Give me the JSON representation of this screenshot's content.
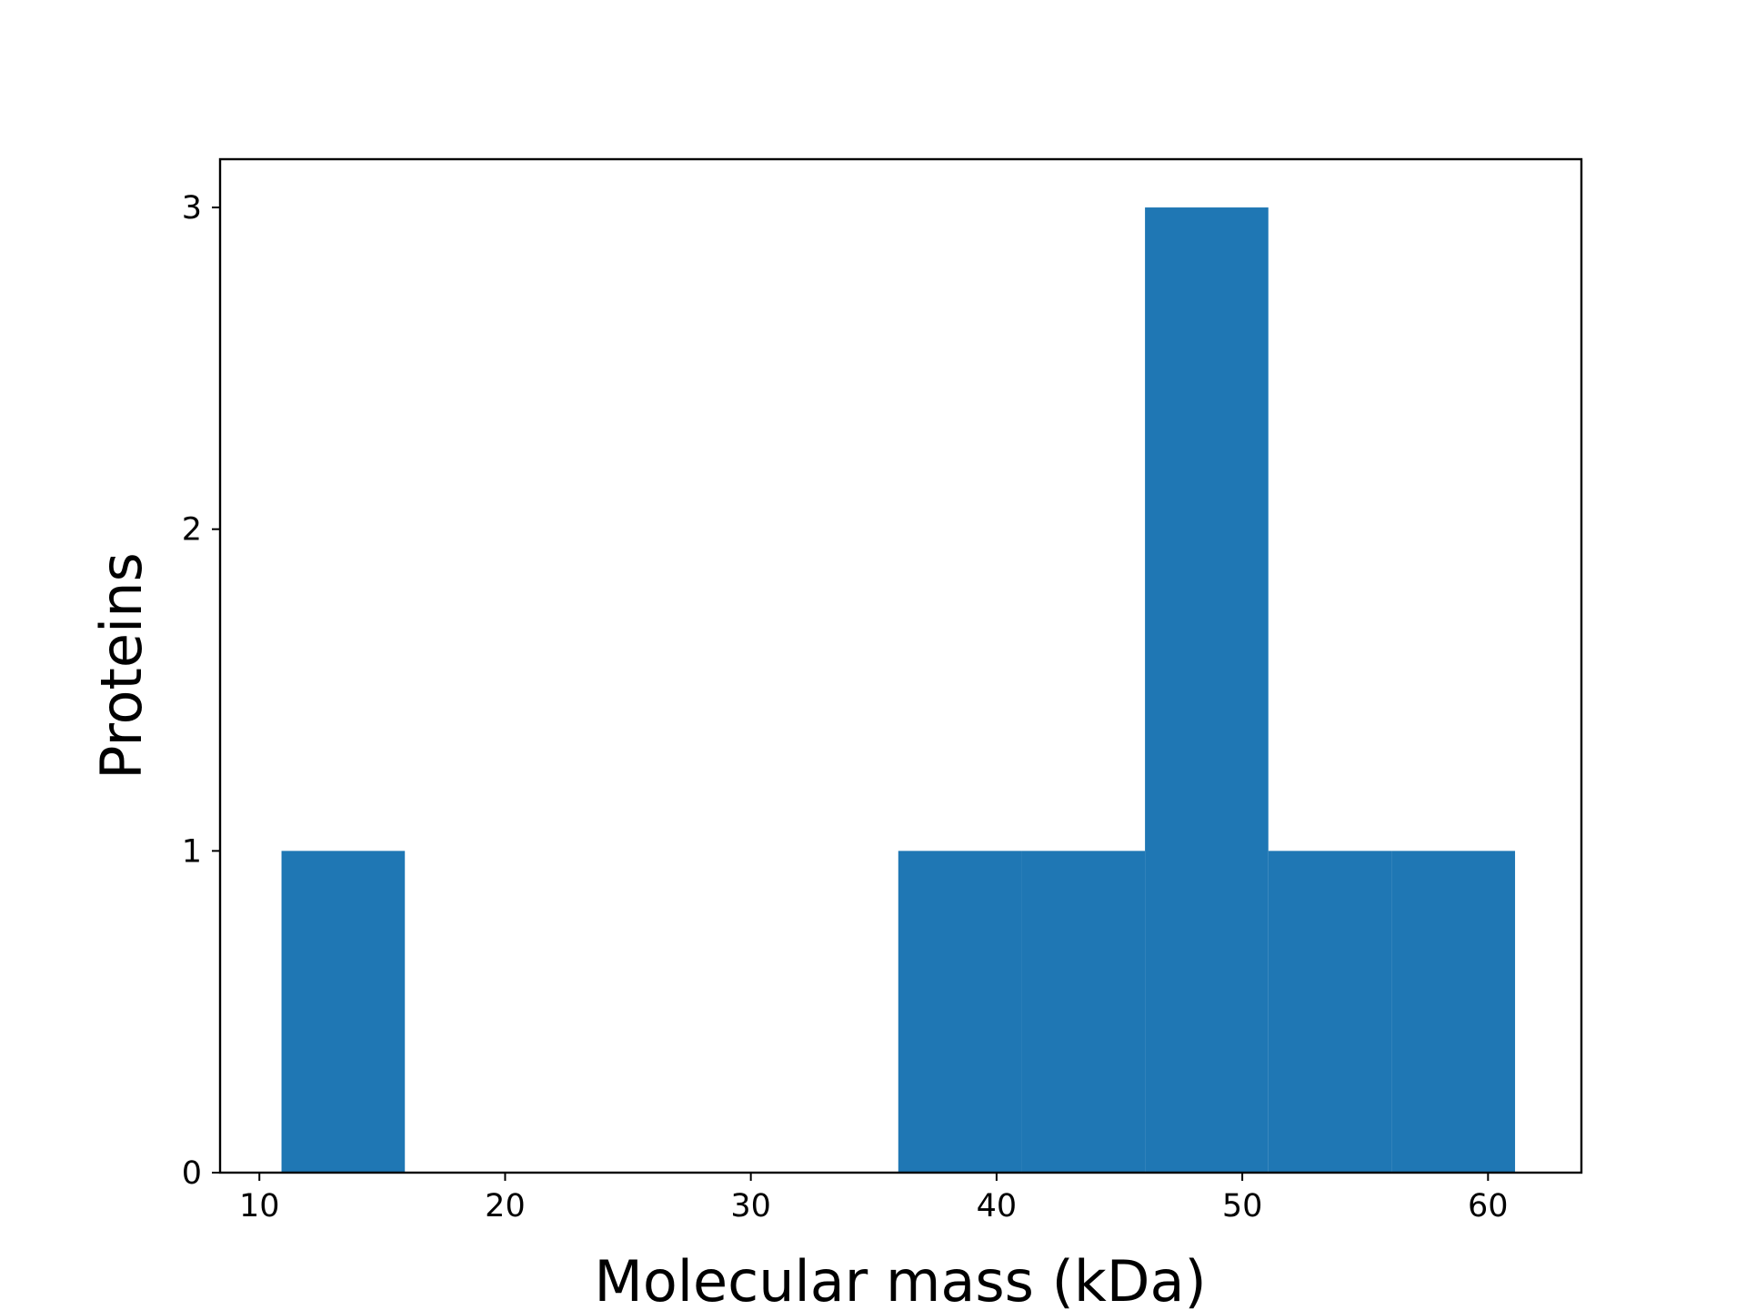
{
  "chart_data": {
    "type": "bar",
    "title": "",
    "xlabel": "Molecular mass (kDa)",
    "ylabel": "Proteins",
    "xlim": [
      8.4,
      63.8
    ],
    "ylim": [
      0,
      3.15
    ],
    "x_ticks": [
      10,
      20,
      30,
      40,
      50,
      60
    ],
    "y_ticks": [
      0,
      1,
      2,
      3
    ],
    "bin_edges": [
      10.9,
      15.92,
      20.94,
      25.96,
      30.98,
      36.0,
      41.02,
      46.04,
      51.06,
      56.08,
      61.1
    ],
    "values": [
      1,
      0,
      0,
      0,
      0,
      1,
      1,
      3,
      1,
      1
    ],
    "bar_color": "#1f77b4",
    "grid": false,
    "legend": "none"
  }
}
